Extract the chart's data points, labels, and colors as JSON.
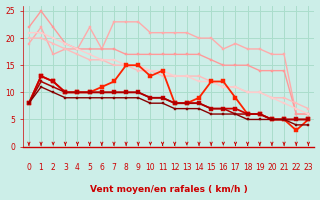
{
  "xlabel": "Vent moyen/en rafales ( km/h )",
  "bg_color": "#cceee8",
  "grid_color": "#aaddcc",
  "xlim": [
    -0.5,
    23.5
  ],
  "ylim": [
    0,
    26
  ],
  "yticks": [
    0,
    5,
    10,
    15,
    20,
    25
  ],
  "xticks": [
    0,
    1,
    2,
    3,
    4,
    5,
    6,
    7,
    8,
    9,
    10,
    11,
    12,
    13,
    14,
    15,
    16,
    17,
    18,
    19,
    20,
    21,
    22,
    23
  ],
  "lines": [
    {
      "x": [
        0,
        1,
        2,
        3,
        4,
        5,
        6,
        7,
        8,
        9,
        10,
        11,
        12,
        13,
        14,
        15,
        16,
        17,
        18,
        19,
        20,
        21,
        22,
        23
      ],
      "y": [
        19,
        22,
        17,
        18,
        18,
        22,
        18,
        23,
        23,
        23,
        21,
        21,
        21,
        21,
        20,
        20,
        18,
        19,
        18,
        18,
        17,
        17,
        6,
        6
      ],
      "color": "#ffaaaa",
      "lw": 1.0,
      "marker": "s",
      "ms": 2.0
    },
    {
      "x": [
        0,
        1,
        2,
        3,
        4,
        5,
        6,
        7,
        8,
        9,
        10,
        11,
        12,
        13,
        14,
        15,
        16,
        17,
        18,
        19,
        20,
        21,
        22,
        23
      ],
      "y": [
        22,
        25,
        22,
        19,
        18,
        18,
        18,
        18,
        17,
        17,
        17,
        17,
        17,
        17,
        17,
        16,
        15,
        15,
        15,
        14,
        14,
        14,
        6,
        6
      ],
      "color": "#ff9999",
      "lw": 1.0,
      "marker": "s",
      "ms": 2.0
    },
    {
      "x": [
        0,
        1,
        2,
        3,
        4,
        5,
        6,
        7,
        8,
        9,
        10,
        11,
        12,
        13,
        14,
        15,
        16,
        17,
        18,
        19,
        20,
        21,
        22,
        23
      ],
      "y": [
        20,
        20,
        19,
        18,
        17,
        16,
        16,
        15,
        15,
        14,
        14,
        13,
        13,
        13,
        13,
        12,
        11,
        11,
        10,
        10,
        9,
        9,
        8,
        7
      ],
      "color": "#ffbbbb",
      "lw": 1.0,
      "marker": "s",
      "ms": 2.0
    },
    {
      "x": [
        0,
        1,
        2,
        3,
        4,
        5,
        6,
        7,
        8,
        9,
        10,
        11,
        12,
        13,
        14,
        15,
        16,
        17,
        18,
        19,
        20,
        21,
        22,
        23
      ],
      "y": [
        21,
        21,
        20,
        19,
        18,
        17,
        16,
        16,
        15,
        15,
        14,
        14,
        13,
        13,
        12,
        12,
        11,
        11,
        10,
        10,
        9,
        8,
        7,
        6
      ],
      "color": "#ffcccc",
      "lw": 1.0,
      "marker": "s",
      "ms": 2.0
    },
    {
      "x": [
        0,
        1,
        2,
        3,
        4,
        5,
        6,
        7,
        8,
        9,
        10,
        11,
        12,
        13,
        14,
        15,
        16,
        17,
        18,
        19,
        20,
        21,
        22,
        23
      ],
      "y": [
        8,
        13,
        12,
        10,
        10,
        10,
        11,
        12,
        15,
        15,
        13,
        14,
        8,
        8,
        9,
        12,
        12,
        9,
        6,
        6,
        5,
        5,
        3,
        5
      ],
      "color": "#ff2200",
      "lw": 1.3,
      "marker": "s",
      "ms": 2.5
    },
    {
      "x": [
        0,
        1,
        2,
        3,
        4,
        5,
        6,
        7,
        8,
        9,
        10,
        11,
        12,
        13,
        14,
        15,
        16,
        17,
        18,
        19,
        20,
        21,
        22,
        23
      ],
      "y": [
        8,
        13,
        12,
        10,
        10,
        10,
        10,
        10,
        10,
        10,
        9,
        9,
        8,
        8,
        8,
        7,
        7,
        7,
        6,
        6,
        5,
        5,
        5,
        5
      ],
      "color": "#cc0000",
      "lw": 1.3,
      "marker": "s",
      "ms": 2.5
    },
    {
      "x": [
        0,
        1,
        2,
        3,
        4,
        5,
        6,
        7,
        8,
        9,
        10,
        11,
        12,
        13,
        14,
        15,
        16,
        17,
        18,
        19,
        20,
        21,
        22,
        23
      ],
      "y": [
        8,
        12,
        11,
        10,
        10,
        10,
        10,
        10,
        10,
        10,
        9,
        9,
        8,
        8,
        8,
        7,
        7,
        6,
        6,
        6,
        5,
        5,
        5,
        5
      ],
      "color": "#aa0000",
      "lw": 1.1,
      "marker": "s",
      "ms": 2.0
    },
    {
      "x": [
        0,
        1,
        2,
        3,
        4,
        5,
        6,
        7,
        8,
        9,
        10,
        11,
        12,
        13,
        14,
        15,
        16,
        17,
        18,
        19,
        20,
        21,
        22,
        23
      ],
      "y": [
        8,
        11,
        10,
        9,
        9,
        9,
        9,
        9,
        9,
        9,
        8,
        8,
        7,
        7,
        7,
        6,
        6,
        6,
        5,
        5,
        5,
        5,
        4,
        4
      ],
      "color": "#880000",
      "lw": 1.0,
      "marker": "s",
      "ms": 2.0
    }
  ],
  "arrow_color": "#cc0000",
  "xlabel_color": "#cc0000",
  "tick_color": "#cc0000",
  "axis_label_fontsize": 6.5,
  "tick_fontsize": 5.5
}
